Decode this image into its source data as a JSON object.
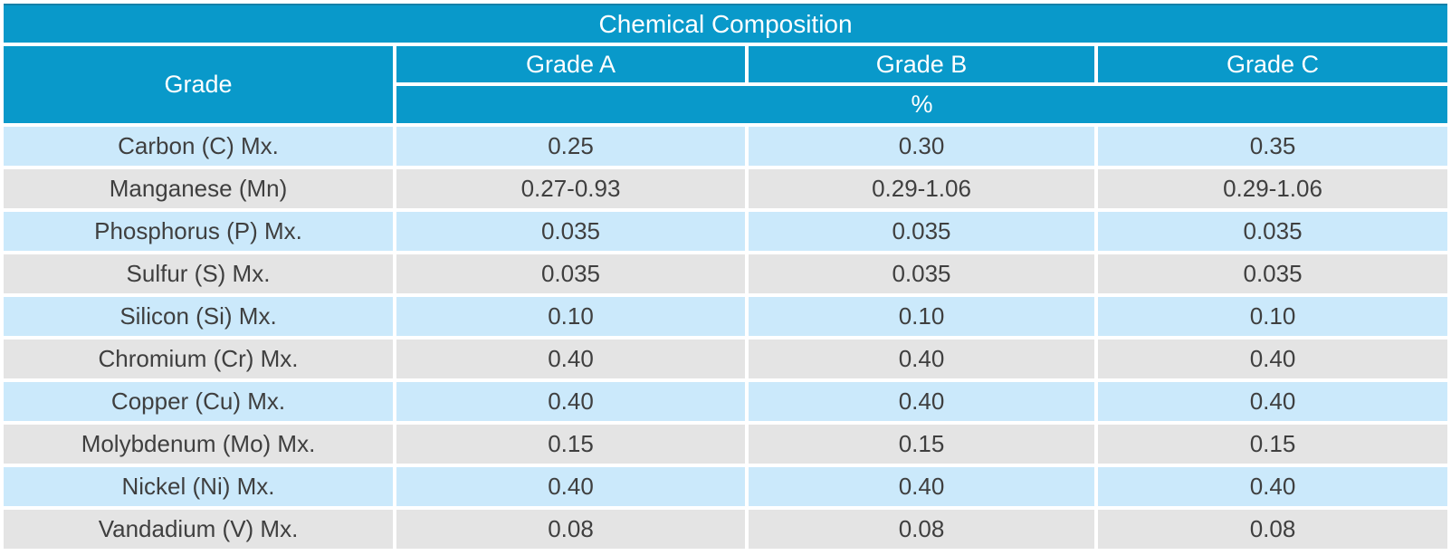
{
  "chart_data": {
    "type": "table",
    "title": "Chemical Composition",
    "corner_header": "Grade",
    "grade_headers": [
      "Grade A",
      "Grade B",
      "Grade C"
    ],
    "unit_header": "%",
    "rows": [
      {
        "label": "Carbon (C) Mx.",
        "values": [
          "0.25",
          "0.30",
          "0.35"
        ]
      },
      {
        "label": "Manganese (Mn)",
        "values": [
          "0.27-0.93",
          "0.29-1.06",
          "0.29-1.06"
        ]
      },
      {
        "label": "Phosphorus (P) Mx.",
        "values": [
          "0.035",
          "0.035",
          "0.035"
        ]
      },
      {
        "label": "Sulfur (S) Mx.",
        "values": [
          "0.035",
          "0.035",
          "0.035"
        ]
      },
      {
        "label": "Silicon (Si) Mx.",
        "values": [
          "0.10",
          "0.10",
          "0.10"
        ]
      },
      {
        "label": "Chromium (Cr) Mx.",
        "values": [
          "0.40",
          "0.40",
          "0.40"
        ]
      },
      {
        "label": "Copper (Cu) Mx.",
        "values": [
          "0.40",
          "0.40",
          "0.40"
        ]
      },
      {
        "label": "Molybdenum (Mo) Mx.",
        "values": [
          "0.15",
          "0.15",
          "0.15"
        ]
      },
      {
        "label": "Nickel (Ni) Mx.",
        "values": [
          "0.40",
          "0.40",
          "0.40"
        ]
      },
      {
        "label": "Vandadium (V) Mx.",
        "values": [
          "0.08",
          "0.08",
          "0.08"
        ]
      }
    ],
    "colors": {
      "header_bg": "#0999CA",
      "header_text": "#FFFFFF",
      "row_light_blue": "#CBE9FB",
      "row_gray": "#E4E4E4",
      "body_text": "#3F3F3F"
    }
  }
}
